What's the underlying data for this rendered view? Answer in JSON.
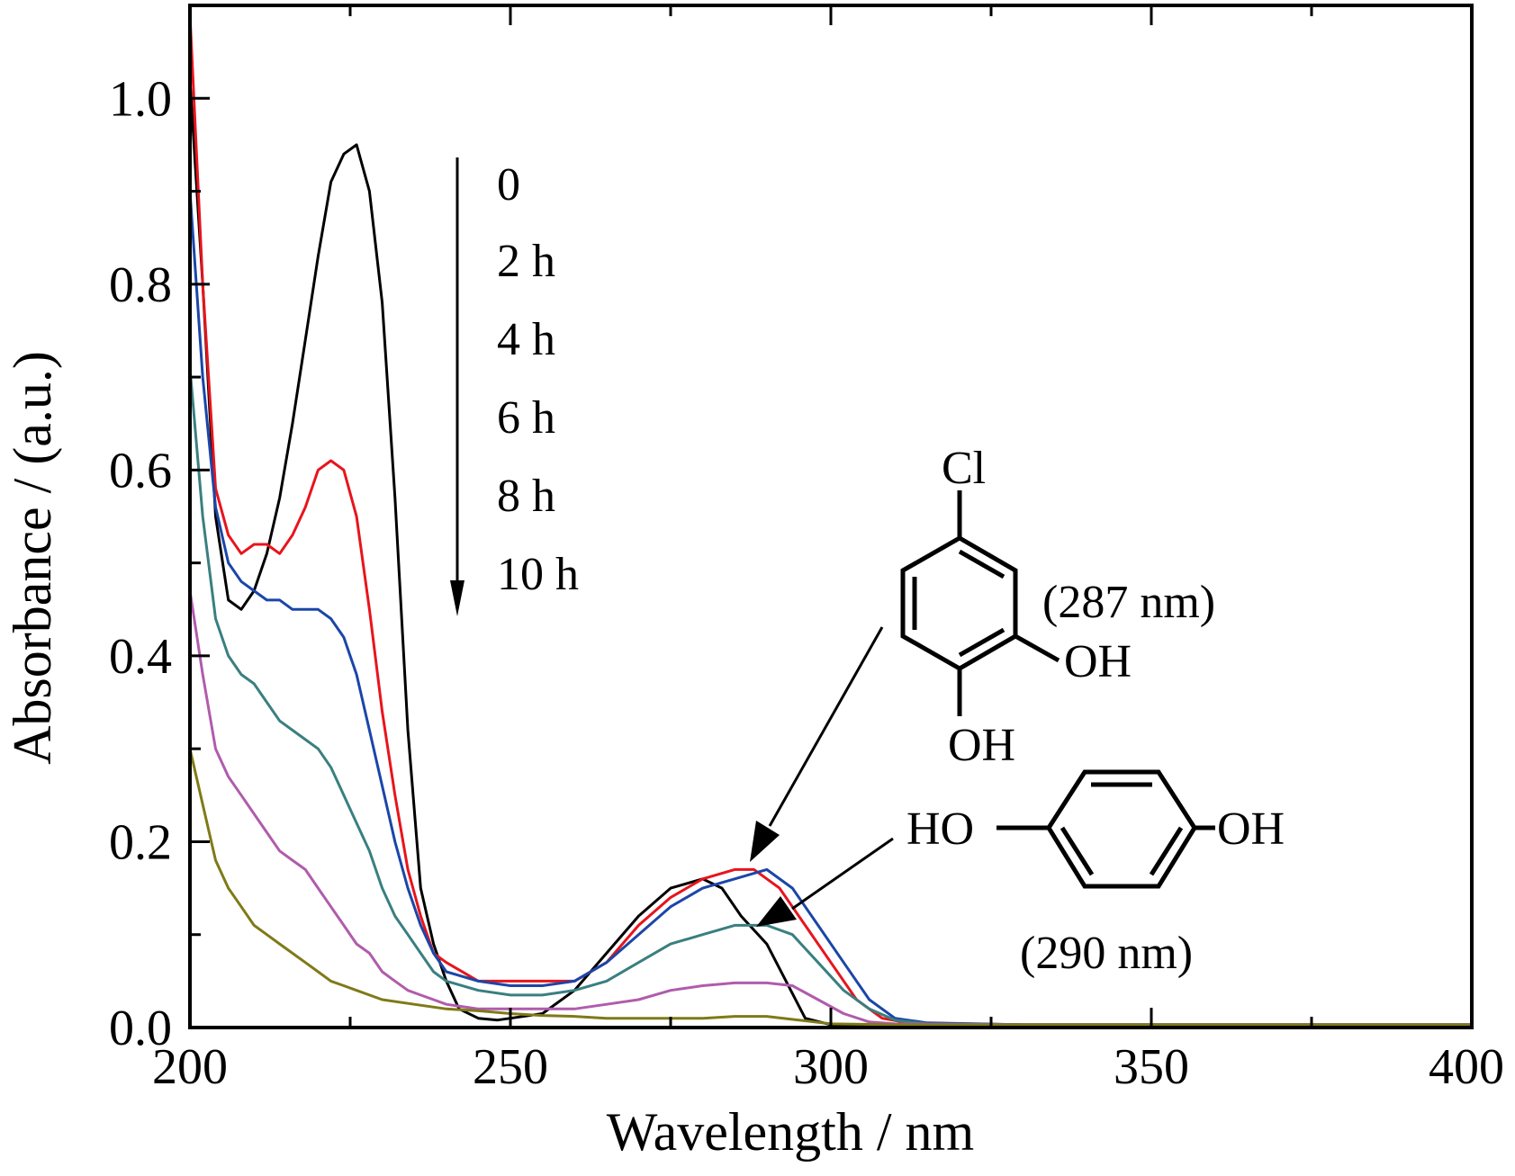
{
  "chart_data": {
    "type": "line",
    "title": "",
    "xlabel": "Wavelength / nm",
    "ylabel": "Absorbance / (a.u.)",
    "xlim": [
      200,
      400
    ],
    "ylim": [
      0.0,
      1.1
    ],
    "x_ticks": [
      "200",
      "250",
      "300",
      "350",
      "400"
    ],
    "y_ticks": [
      "0.0",
      "0.2",
      "0.4",
      "0.6",
      "0.8",
      "1.0"
    ],
    "x_tick_values": [
      200,
      250,
      300,
      350,
      400
    ],
    "y_tick_values": [
      0.0,
      0.2,
      0.4,
      0.6,
      0.8,
      1.0
    ],
    "grid": false,
    "legend_placement": "top-center",
    "legend": {
      "labels": [
        "0",
        "2 h",
        "4 h",
        "6 h",
        "8 h",
        "10 h"
      ]
    },
    "annotations": {
      "cl_label": "Cl",
      "oh_right": "OH",
      "oh_bottom": "OH",
      "wavelength_1": "(287 nm)",
      "ho_left": "HO",
      "oh_hq": "OH",
      "wavelength_2": "(290 nm)"
    },
    "series": [
      {
        "name": "0",
        "color": "#000000",
        "points": [
          [
            200,
            1.02
          ],
          [
            202,
            0.8
          ],
          [
            204,
            0.55
          ],
          [
            206,
            0.46
          ],
          [
            208,
            0.45
          ],
          [
            210,
            0.47
          ],
          [
            212,
            0.51
          ],
          [
            214,
            0.57
          ],
          [
            216,
            0.65
          ],
          [
            218,
            0.74
          ],
          [
            220,
            0.83
          ],
          [
            222,
            0.91
          ],
          [
            224,
            0.94
          ],
          [
            226,
            0.95
          ],
          [
            228,
            0.9
          ],
          [
            230,
            0.78
          ],
          [
            232,
            0.57
          ],
          [
            234,
            0.32
          ],
          [
            236,
            0.15
          ],
          [
            238,
            0.09
          ],
          [
            240,
            0.05
          ],
          [
            242,
            0.02
          ],
          [
            245,
            0.01
          ],
          [
            248,
            0.008
          ],
          [
            250,
            0.01
          ],
          [
            255,
            0.015
          ],
          [
            260,
            0.04
          ],
          [
            265,
            0.08
          ],
          [
            270,
            0.12
          ],
          [
            275,
            0.15
          ],
          [
            280,
            0.16
          ],
          [
            283,
            0.15
          ],
          [
            286,
            0.12
          ],
          [
            290,
            0.09
          ],
          [
            293,
            0.05
          ],
          [
            296,
            0.01
          ],
          [
            300,
            0.003
          ],
          [
            310,
            0.003
          ],
          [
            330,
            0.003
          ],
          [
            360,
            0.003
          ],
          [
            400,
            0.003
          ]
        ]
      },
      {
        "name": "2 h",
        "color": "#e8141c",
        "points": [
          [
            200,
            1.09
          ],
          [
            202,
            0.8
          ],
          [
            204,
            0.58
          ],
          [
            206,
            0.53
          ],
          [
            208,
            0.51
          ],
          [
            210,
            0.52
          ],
          [
            212,
            0.52
          ],
          [
            214,
            0.51
          ],
          [
            216,
            0.53
          ],
          [
            218,
            0.56
          ],
          [
            220,
            0.6
          ],
          [
            222,
            0.61
          ],
          [
            224,
            0.6
          ],
          [
            226,
            0.55
          ],
          [
            228,
            0.45
          ],
          [
            230,
            0.34
          ],
          [
            232,
            0.25
          ],
          [
            234,
            0.17
          ],
          [
            236,
            0.12
          ],
          [
            238,
            0.08
          ],
          [
            240,
            0.07
          ],
          [
            245,
            0.05
          ],
          [
            250,
            0.05
          ],
          [
            255,
            0.05
          ],
          [
            260,
            0.05
          ],
          [
            265,
            0.07
          ],
          [
            270,
            0.11
          ],
          [
            275,
            0.14
          ],
          [
            280,
            0.16
          ],
          [
            285,
            0.17
          ],
          [
            288,
            0.17
          ],
          [
            292,
            0.15
          ],
          [
            296,
            0.11
          ],
          [
            300,
            0.07
          ],
          [
            304,
            0.03
          ],
          [
            308,
            0.01
          ],
          [
            312,
            0.005
          ],
          [
            330,
            0.003
          ],
          [
            360,
            0.003
          ],
          [
            400,
            0.003
          ]
        ]
      },
      {
        "name": "4 h",
        "color": "#1b46a8",
        "points": [
          [
            200,
            0.9
          ],
          [
            202,
            0.7
          ],
          [
            204,
            0.56
          ],
          [
            206,
            0.5
          ],
          [
            208,
            0.48
          ],
          [
            210,
            0.47
          ],
          [
            212,
            0.46
          ],
          [
            214,
            0.46
          ],
          [
            216,
            0.45
          ],
          [
            218,
            0.45
          ],
          [
            220,
            0.45
          ],
          [
            222,
            0.44
          ],
          [
            224,
            0.42
          ],
          [
            226,
            0.38
          ],
          [
            228,
            0.32
          ],
          [
            230,
            0.26
          ],
          [
            232,
            0.2
          ],
          [
            234,
            0.15
          ],
          [
            236,
            0.11
          ],
          [
            238,
            0.08
          ],
          [
            240,
            0.06
          ],
          [
            245,
            0.05
          ],
          [
            250,
            0.045
          ],
          [
            255,
            0.045
          ],
          [
            260,
            0.05
          ],
          [
            265,
            0.07
          ],
          [
            270,
            0.1
          ],
          [
            275,
            0.13
          ],
          [
            280,
            0.15
          ],
          [
            285,
            0.16
          ],
          [
            290,
            0.17
          ],
          [
            294,
            0.15
          ],
          [
            298,
            0.11
          ],
          [
            302,
            0.07
          ],
          [
            306,
            0.03
          ],
          [
            310,
            0.01
          ],
          [
            315,
            0.005
          ],
          [
            330,
            0.003
          ],
          [
            360,
            0.003
          ],
          [
            400,
            0.003
          ]
        ]
      },
      {
        "name": "6 h",
        "color": "#3a7f80",
        "points": [
          [
            200,
            0.71
          ],
          [
            202,
            0.55
          ],
          [
            204,
            0.44
          ],
          [
            206,
            0.4
          ],
          [
            208,
            0.38
          ],
          [
            210,
            0.37
          ],
          [
            212,
            0.35
          ],
          [
            214,
            0.33
          ],
          [
            216,
            0.32
          ],
          [
            218,
            0.31
          ],
          [
            220,
            0.3
          ],
          [
            222,
            0.28
          ],
          [
            224,
            0.25
          ],
          [
            226,
            0.22
          ],
          [
            228,
            0.19
          ],
          [
            230,
            0.15
          ],
          [
            232,
            0.12
          ],
          [
            234,
            0.1
          ],
          [
            236,
            0.08
          ],
          [
            238,
            0.06
          ],
          [
            240,
            0.05
          ],
          [
            245,
            0.04
          ],
          [
            250,
            0.035
          ],
          [
            255,
            0.035
          ],
          [
            260,
            0.04
          ],
          [
            265,
            0.05
          ],
          [
            270,
            0.07
          ],
          [
            275,
            0.09
          ],
          [
            280,
            0.1
          ],
          [
            285,
            0.11
          ],
          [
            290,
            0.11
          ],
          [
            294,
            0.1
          ],
          [
            298,
            0.07
          ],
          [
            302,
            0.04
          ],
          [
            306,
            0.02
          ],
          [
            310,
            0.008
          ],
          [
            315,
            0.004
          ],
          [
            330,
            0.003
          ],
          [
            360,
            0.003
          ],
          [
            400,
            0.003
          ]
        ]
      },
      {
        "name": "8 h",
        "color": "#b05cac",
        "points": [
          [
            200,
            0.47
          ],
          [
            202,
            0.38
          ],
          [
            204,
            0.3
          ],
          [
            206,
            0.27
          ],
          [
            208,
            0.25
          ],
          [
            210,
            0.23
          ],
          [
            212,
            0.21
          ],
          [
            214,
            0.19
          ],
          [
            216,
            0.18
          ],
          [
            218,
            0.17
          ],
          [
            220,
            0.15
          ],
          [
            222,
            0.13
          ],
          [
            224,
            0.11
          ],
          [
            226,
            0.09
          ],
          [
            228,
            0.08
          ],
          [
            230,
            0.06
          ],
          [
            232,
            0.05
          ],
          [
            234,
            0.04
          ],
          [
            236,
            0.035
          ],
          [
            238,
            0.03
          ],
          [
            240,
            0.025
          ],
          [
            245,
            0.02
          ],
          [
            250,
            0.02
          ],
          [
            255,
            0.02
          ],
          [
            260,
            0.02
          ],
          [
            265,
            0.025
          ],
          [
            270,
            0.03
          ],
          [
            275,
            0.04
          ],
          [
            280,
            0.045
          ],
          [
            285,
            0.048
          ],
          [
            290,
            0.048
          ],
          [
            294,
            0.045
          ],
          [
            298,
            0.03
          ],
          [
            302,
            0.015
          ],
          [
            306,
            0.006
          ],
          [
            310,
            0.004
          ],
          [
            330,
            0.003
          ],
          [
            360,
            0.003
          ],
          [
            400,
            0.003
          ]
        ]
      },
      {
        "name": "10 h",
        "color": "#7f7a17",
        "points": [
          [
            200,
            0.3
          ],
          [
            202,
            0.24
          ],
          [
            204,
            0.18
          ],
          [
            206,
            0.15
          ],
          [
            208,
            0.13
          ],
          [
            210,
            0.11
          ],
          [
            212,
            0.1
          ],
          [
            214,
            0.09
          ],
          [
            216,
            0.08
          ],
          [
            218,
            0.07
          ],
          [
            220,
            0.06
          ],
          [
            222,
            0.05
          ],
          [
            224,
            0.045
          ],
          [
            226,
            0.04
          ],
          [
            228,
            0.035
          ],
          [
            230,
            0.03
          ],
          [
            235,
            0.025
          ],
          [
            240,
            0.02
          ],
          [
            245,
            0.018
          ],
          [
            250,
            0.015
          ],
          [
            255,
            0.013
          ],
          [
            260,
            0.012
          ],
          [
            265,
            0.01
          ],
          [
            270,
            0.01
          ],
          [
            275,
            0.01
          ],
          [
            280,
            0.01
          ],
          [
            285,
            0.012
          ],
          [
            290,
            0.012
          ],
          [
            295,
            0.008
          ],
          [
            300,
            0.004
          ],
          [
            310,
            0.003
          ],
          [
            330,
            0.003
          ],
          [
            360,
            0.003
          ],
          [
            400,
            0.003
          ]
        ]
      }
    ]
  }
}
